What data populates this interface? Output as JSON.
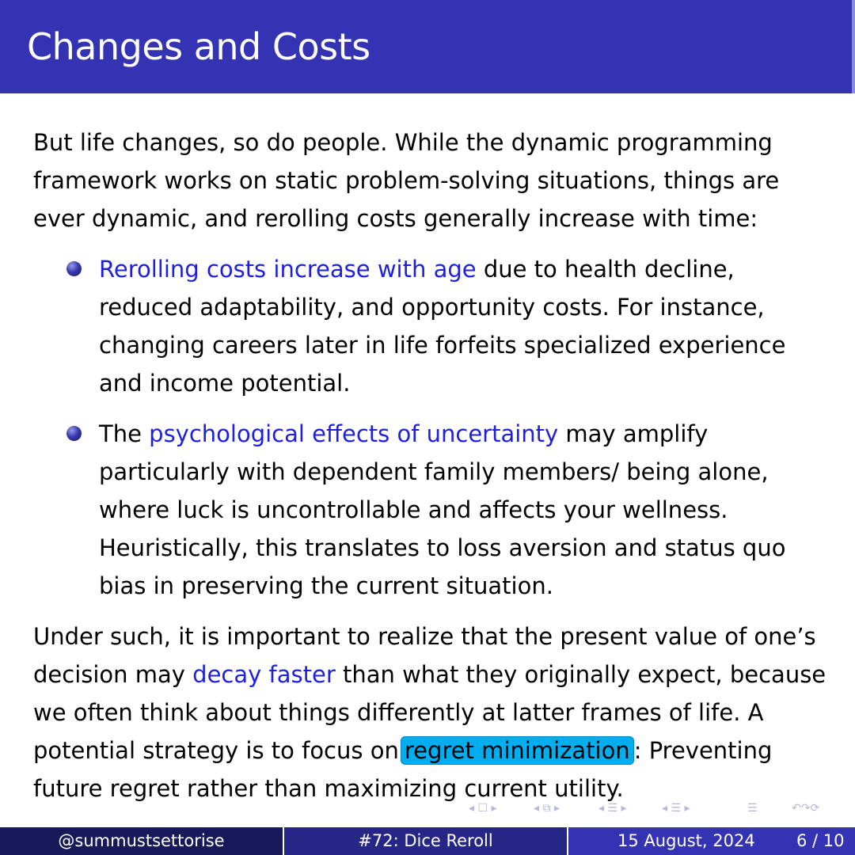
{
  "slide": {
    "title": "Changes and Costs"
  },
  "body": {
    "intro": "But life changes, so do people.  While the dynamic programming framework works on static problem-solving situations, things are ever dynamic, and rerolling costs generally increase with time:",
    "bullets": [
      {
        "prefix": "",
        "highlight": "Rerolling costs increase with age",
        "rest": " due to health decline, reduced adaptability, and opportunity costs.  For instance, changing careers later in life forfeits specialized experience and income potential."
      },
      {
        "prefix": "The ",
        "highlight": "psychological effects of uncertainty",
        "rest": " may amplify particularly with dependent family members/ being alone, where luck is uncontrollable and affects your wellness. Heuristically, this translates to loss aversion and status quo bias in preserving the current situation."
      }
    ],
    "conclusion": {
      "part1": "Under such, it is important to realize that the present value of one’s decision may ",
      "highlight": "decay faster",
      "part2": " than what they originally expect, because we often think about things differently at latter frames of life.  A potential strategy is to focus on",
      "boxed": "regret minimization",
      "part3": ":  Preventing future regret rather than maximizing current utility."
    }
  },
  "footer": {
    "author": "@summustsettorise",
    "talk": "#72: Dice Reroll",
    "date": "15 August, 2024",
    "page": "6 / 10"
  },
  "nav": {
    "icons": [
      "nav-frame-icon",
      "nav-subsection-icon",
      "nav-section-icon",
      "nav-slide-icon",
      "nav-align-icon",
      "nav-search-icon"
    ]
  },
  "colors": {
    "title_bar": "#3333b3",
    "highlight_text": "#1f1fe0",
    "box_fill": "#00aeef",
    "footer_left": "#191959",
    "footer_mid": "#262686",
    "footer_right": "#3333b3"
  }
}
